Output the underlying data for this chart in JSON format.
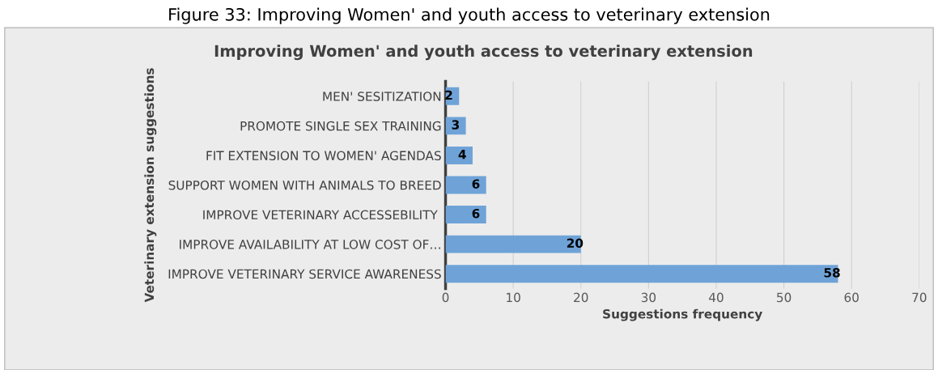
{
  "chart_data": {
    "type": "bar",
    "orientation": "horizontal",
    "title": "Improving Women' and youth access to veterinary extension",
    "xlabel": "Suggestions frequency",
    "ylabel": "Veterinary extension suggestions",
    "annotations": [
      "Figure 33: Improving Women' and youth access to veterinary extension"
    ],
    "categories": [
      "MEN' SESITIZATION",
      "PROMOTE SINGLE SEX TRAINING",
      "FIT EXTENSION TO WOMEN' AGENDAS",
      "SUPPORT WOMEN WITH ANIMALS TO BREED",
      "IMPROVE VETERINARY ACCESSEBILITY ",
      "IMPROVE AVAILABILITY AT LOW COST OF…",
      "IMPROVE VETERINARY SERVICE AWARENESS"
    ],
    "values": [
      2,
      3,
      4,
      6,
      6,
      20,
      58
    ],
    "color": "#6fa3d8",
    "xlim": [
      0,
      70
    ],
    "xticks": [
      0,
      10,
      20,
      30,
      40,
      50,
      60,
      70
    ],
    "grid": "x",
    "data_labels": true
  }
}
